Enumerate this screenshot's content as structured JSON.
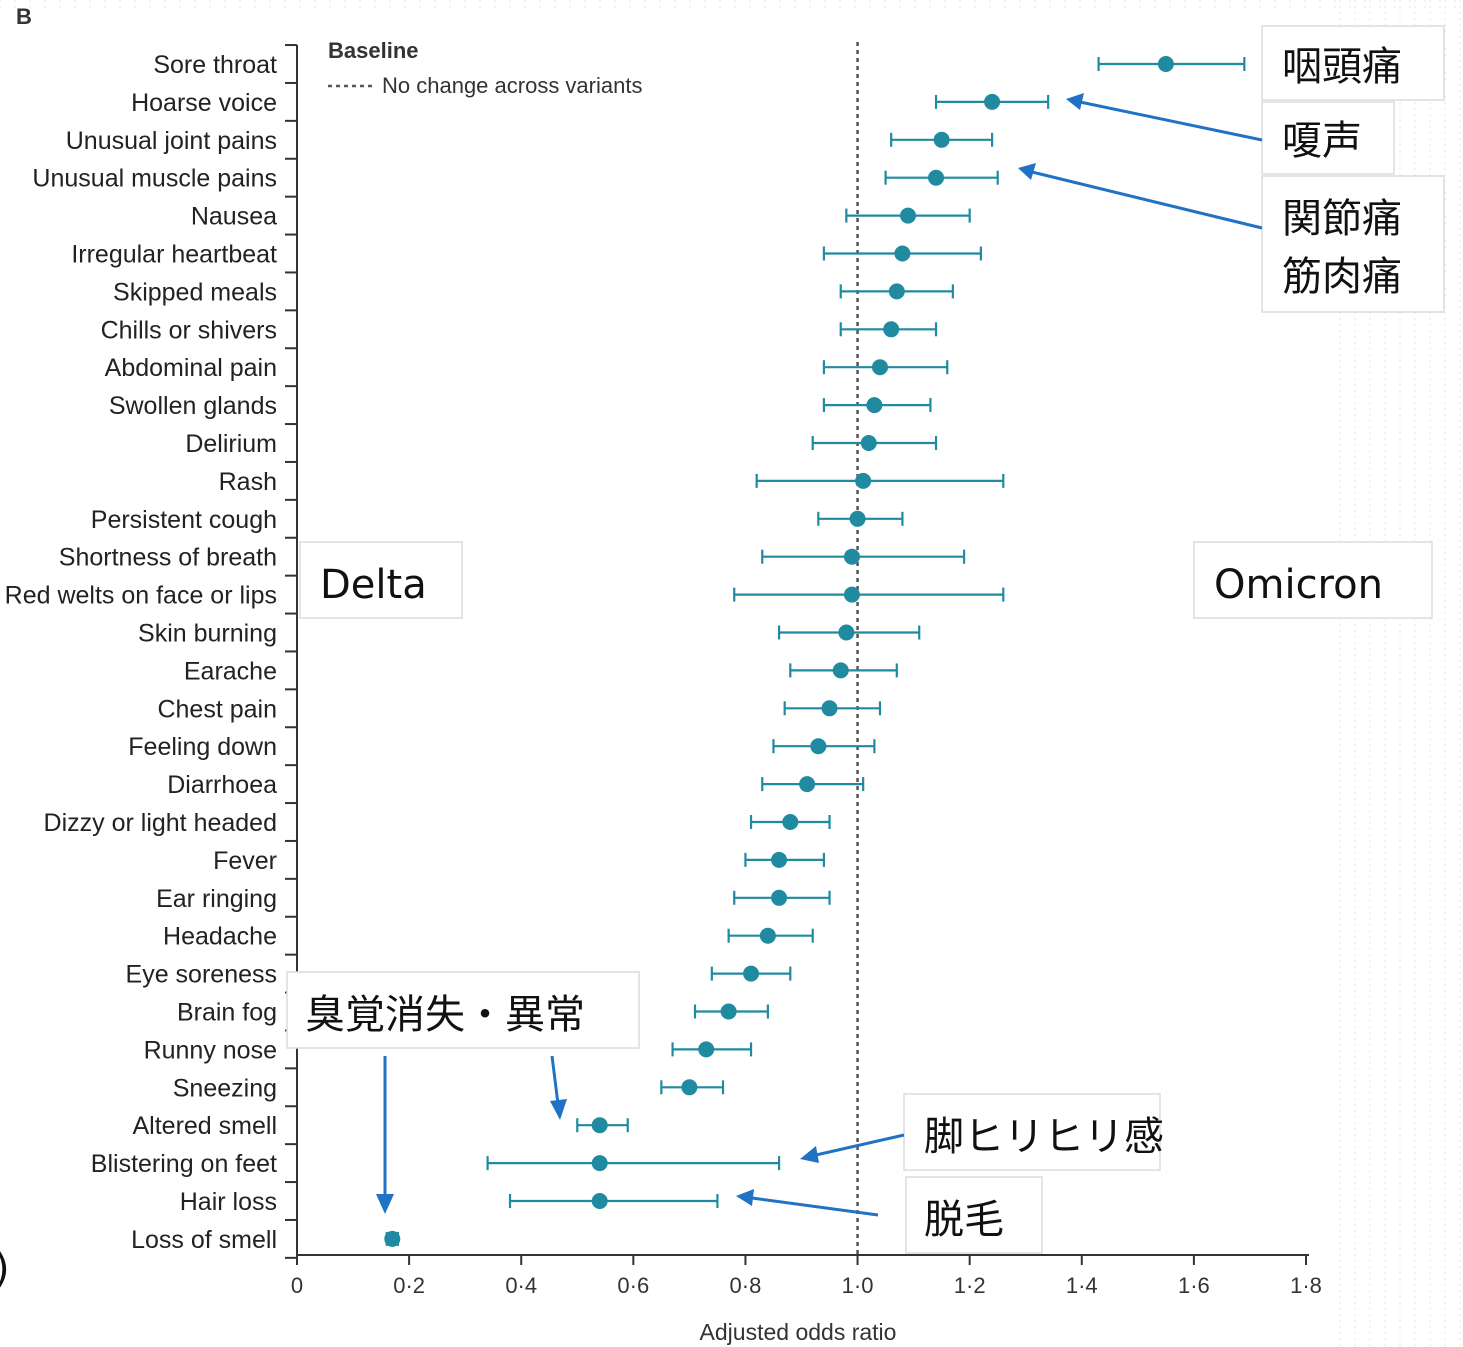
{
  "panel_letter": "B",
  "edge_fragment": ")",
  "chart_data": {
    "type": "forest",
    "xlabel": "Adjusted odds ratio",
    "xlim": [
      0,
      1.8
    ],
    "xticks": [
      0,
      0.2,
      0.4,
      0.6,
      0.8,
      1.0,
      1.2,
      1.4,
      1.6,
      1.8
    ],
    "xtick_labels": [
      "0",
      "0·2",
      "0·4",
      "0·6",
      "0·8",
      "1·0",
      "1·2",
      "1·4",
      "1·6",
      "1·8"
    ],
    "reference_x": 1.0,
    "legend": {
      "title": "Baseline",
      "line_label": "No change across variants",
      "placement": "top-left"
    },
    "color": "#1f8aa0",
    "rows": [
      {
        "label": "Sore throat",
        "or": 1.55,
        "lo": 1.43,
        "hi": 1.69
      },
      {
        "label": "Hoarse voice",
        "or": 1.24,
        "lo": 1.14,
        "hi": 1.34
      },
      {
        "label": "Unusual joint pains",
        "or": 1.15,
        "lo": 1.06,
        "hi": 1.24
      },
      {
        "label": "Unusual muscle pains",
        "or": 1.14,
        "lo": 1.05,
        "hi": 1.25
      },
      {
        "label": "Nausea",
        "or": 1.09,
        "lo": 0.98,
        "hi": 1.2
      },
      {
        "label": "Irregular heartbeat",
        "or": 1.08,
        "lo": 0.94,
        "hi": 1.22
      },
      {
        "label": "Skipped meals",
        "or": 1.07,
        "lo": 0.97,
        "hi": 1.17
      },
      {
        "label": "Chills or shivers",
        "or": 1.06,
        "lo": 0.97,
        "hi": 1.14
      },
      {
        "label": "Abdominal pain",
        "or": 1.04,
        "lo": 0.94,
        "hi": 1.16
      },
      {
        "label": "Swollen glands",
        "or": 1.03,
        "lo": 0.94,
        "hi": 1.13
      },
      {
        "label": "Delirium",
        "or": 1.02,
        "lo": 0.92,
        "hi": 1.14
      },
      {
        "label": "Rash",
        "or": 1.01,
        "lo": 0.82,
        "hi": 1.26
      },
      {
        "label": "Persistent cough",
        "or": 1.0,
        "lo": 0.93,
        "hi": 1.08
      },
      {
        "label": "Shortness of breath",
        "or": 0.99,
        "lo": 0.83,
        "hi": 1.19
      },
      {
        "label": "Red welts on face or lips",
        "or": 0.99,
        "lo": 0.78,
        "hi": 1.26
      },
      {
        "label": "Skin burning",
        "or": 0.98,
        "lo": 0.86,
        "hi": 1.11
      },
      {
        "label": "Earache",
        "or": 0.97,
        "lo": 0.88,
        "hi": 1.07
      },
      {
        "label": "Chest pain",
        "or": 0.95,
        "lo": 0.87,
        "hi": 1.04
      },
      {
        "label": "Feeling down",
        "or": 0.93,
        "lo": 0.85,
        "hi": 1.03
      },
      {
        "label": "Diarrhoea",
        "or": 0.91,
        "lo": 0.83,
        "hi": 1.01
      },
      {
        "label": "Dizzy or light headed",
        "or": 0.88,
        "lo": 0.81,
        "hi": 0.95
      },
      {
        "label": "Fever",
        "or": 0.86,
        "lo": 0.8,
        "hi": 0.94
      },
      {
        "label": "Ear ringing",
        "or": 0.86,
        "lo": 0.78,
        "hi": 0.95
      },
      {
        "label": "Headache",
        "or": 0.84,
        "lo": 0.77,
        "hi": 0.92
      },
      {
        "label": "Eye soreness",
        "or": 0.81,
        "lo": 0.74,
        "hi": 0.88
      },
      {
        "label": "Brain fog",
        "or": 0.77,
        "lo": 0.71,
        "hi": 0.84
      },
      {
        "label": "Runny nose",
        "or": 0.73,
        "lo": 0.67,
        "hi": 0.81
      },
      {
        "label": "Sneezing",
        "or": 0.7,
        "lo": 0.65,
        "hi": 0.76
      },
      {
        "label": "Altered smell",
        "or": 0.54,
        "lo": 0.5,
        "hi": 0.59
      },
      {
        "label": "Blistering on feet",
        "or": 0.54,
        "lo": 0.34,
        "hi": 0.86
      },
      {
        "label": "Hair loss",
        "or": 0.54,
        "lo": 0.38,
        "hi": 0.75
      },
      {
        "label": "Loss of smell",
        "or": 0.17,
        "lo": 0.16,
        "hi": 0.18
      }
    ]
  },
  "annotations": {
    "side_left": "Delta",
    "side_right": "Omicron",
    "sore_throat": "咽頭痛",
    "hoarse_voice": "嗄声",
    "joint_pain": "関節痛",
    "muscle_pain": "筋肉痛",
    "smell": "臭覚消失・異常",
    "feet": "脚ヒリヒリ感",
    "hair_loss": "脱毛"
  }
}
